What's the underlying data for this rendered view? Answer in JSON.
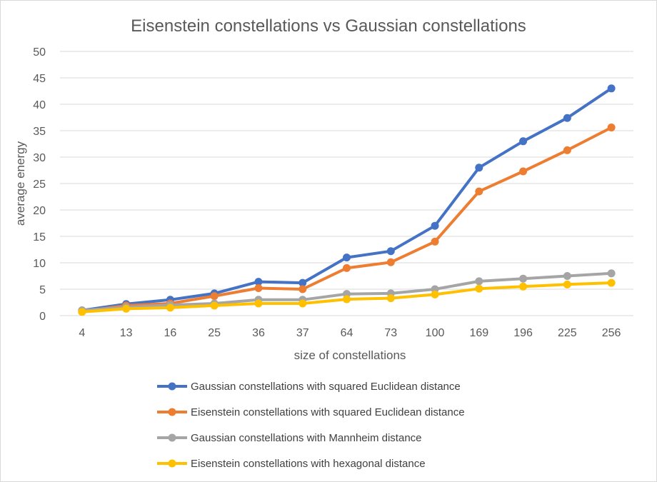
{
  "chart_data": {
    "type": "line",
    "title": "Eisenstein constellations vs Gaussian constellations",
    "xlabel": "size of constellations",
    "ylabel": "average energy",
    "categories": [
      "4",
      "13",
      "16",
      "25",
      "36",
      "37",
      "64",
      "73",
      "100",
      "169",
      "196",
      "225",
      "256"
    ],
    "ylim": [
      0,
      50
    ],
    "yticks": [
      0,
      5,
      10,
      15,
      20,
      25,
      30,
      35,
      40,
      45,
      50
    ],
    "grid": true,
    "legend_position": "bottom",
    "series": [
      {
        "name": "Gaussian constellations with squared Euclidean distance",
        "color": "#4472c4",
        "values": [
          1.0,
          2.2,
          3.0,
          4.2,
          6.4,
          6.2,
          11.0,
          12.2,
          17.0,
          28.0,
          33.0,
          37.4,
          43.0
        ]
      },
      {
        "name": "Eisenstein constellations  with squared Euclidean distance",
        "color": "#ed7d31",
        "values": [
          0.8,
          1.9,
          2.3,
          3.7,
          5.2,
          5.0,
          9.0,
          10.1,
          14.0,
          23.5,
          27.3,
          31.3,
          35.6
        ]
      },
      {
        "name": "Gaussian constellations with Mannheim distance",
        "color": "#a5a5a5",
        "values": [
          1.0,
          1.6,
          2.0,
          2.3,
          3.0,
          3.0,
          4.1,
          4.2,
          5.0,
          6.5,
          7.0,
          7.5,
          8.0
        ]
      },
      {
        "name": "Eisenstein constellations with hexagonal distance",
        "color": "#ffc000",
        "values": [
          0.7,
          1.3,
          1.5,
          1.9,
          2.3,
          2.3,
          3.1,
          3.3,
          4.0,
          5.1,
          5.5,
          5.9,
          6.2
        ]
      }
    ]
  }
}
